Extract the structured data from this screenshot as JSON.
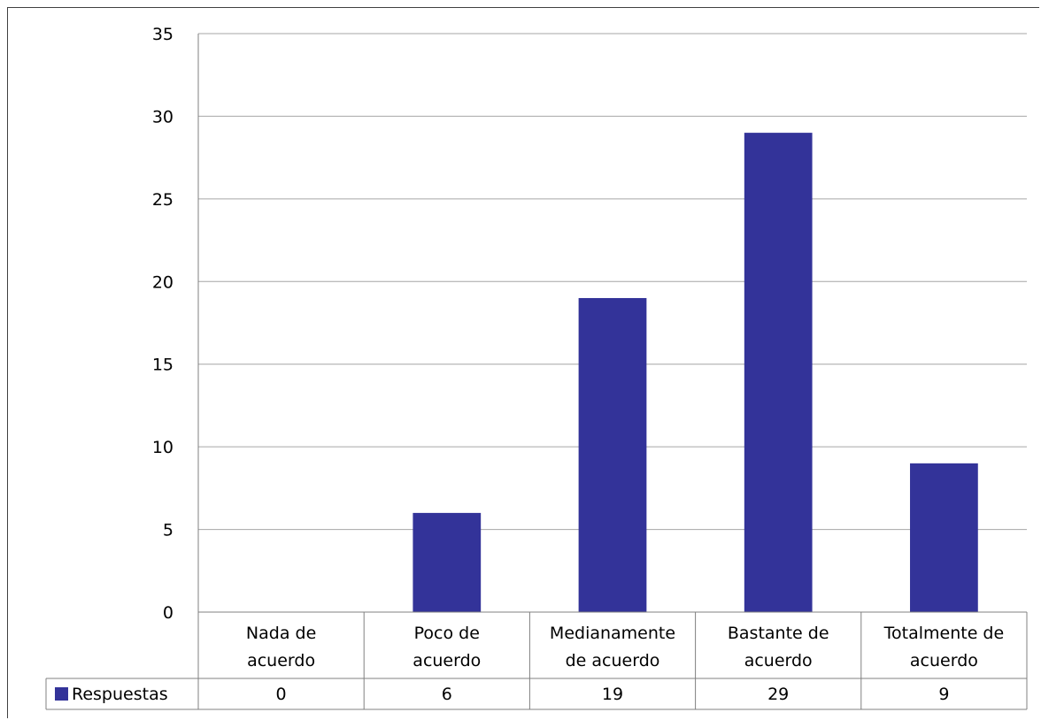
{
  "chart_data": {
    "type": "bar",
    "categories": [
      [
        "Nada de",
        "acuerdo"
      ],
      [
        "Poco de",
        "acuerdo"
      ],
      [
        "Medianamente",
        "de acuerdo"
      ],
      [
        "Bastante de",
        "acuerdo"
      ],
      [
        "Totalmente de",
        "acuerdo"
      ]
    ],
    "series": [
      {
        "name": "Respuestas",
        "values": [
          0,
          6,
          19,
          29,
          9
        ],
        "color": "#333399"
      }
    ],
    "ylim": [
      0,
      35
    ],
    "yticks": [
      0,
      5,
      10,
      15,
      20,
      25,
      30,
      35
    ],
    "grid": true,
    "legend": "data-table-left",
    "data_table": true
  }
}
